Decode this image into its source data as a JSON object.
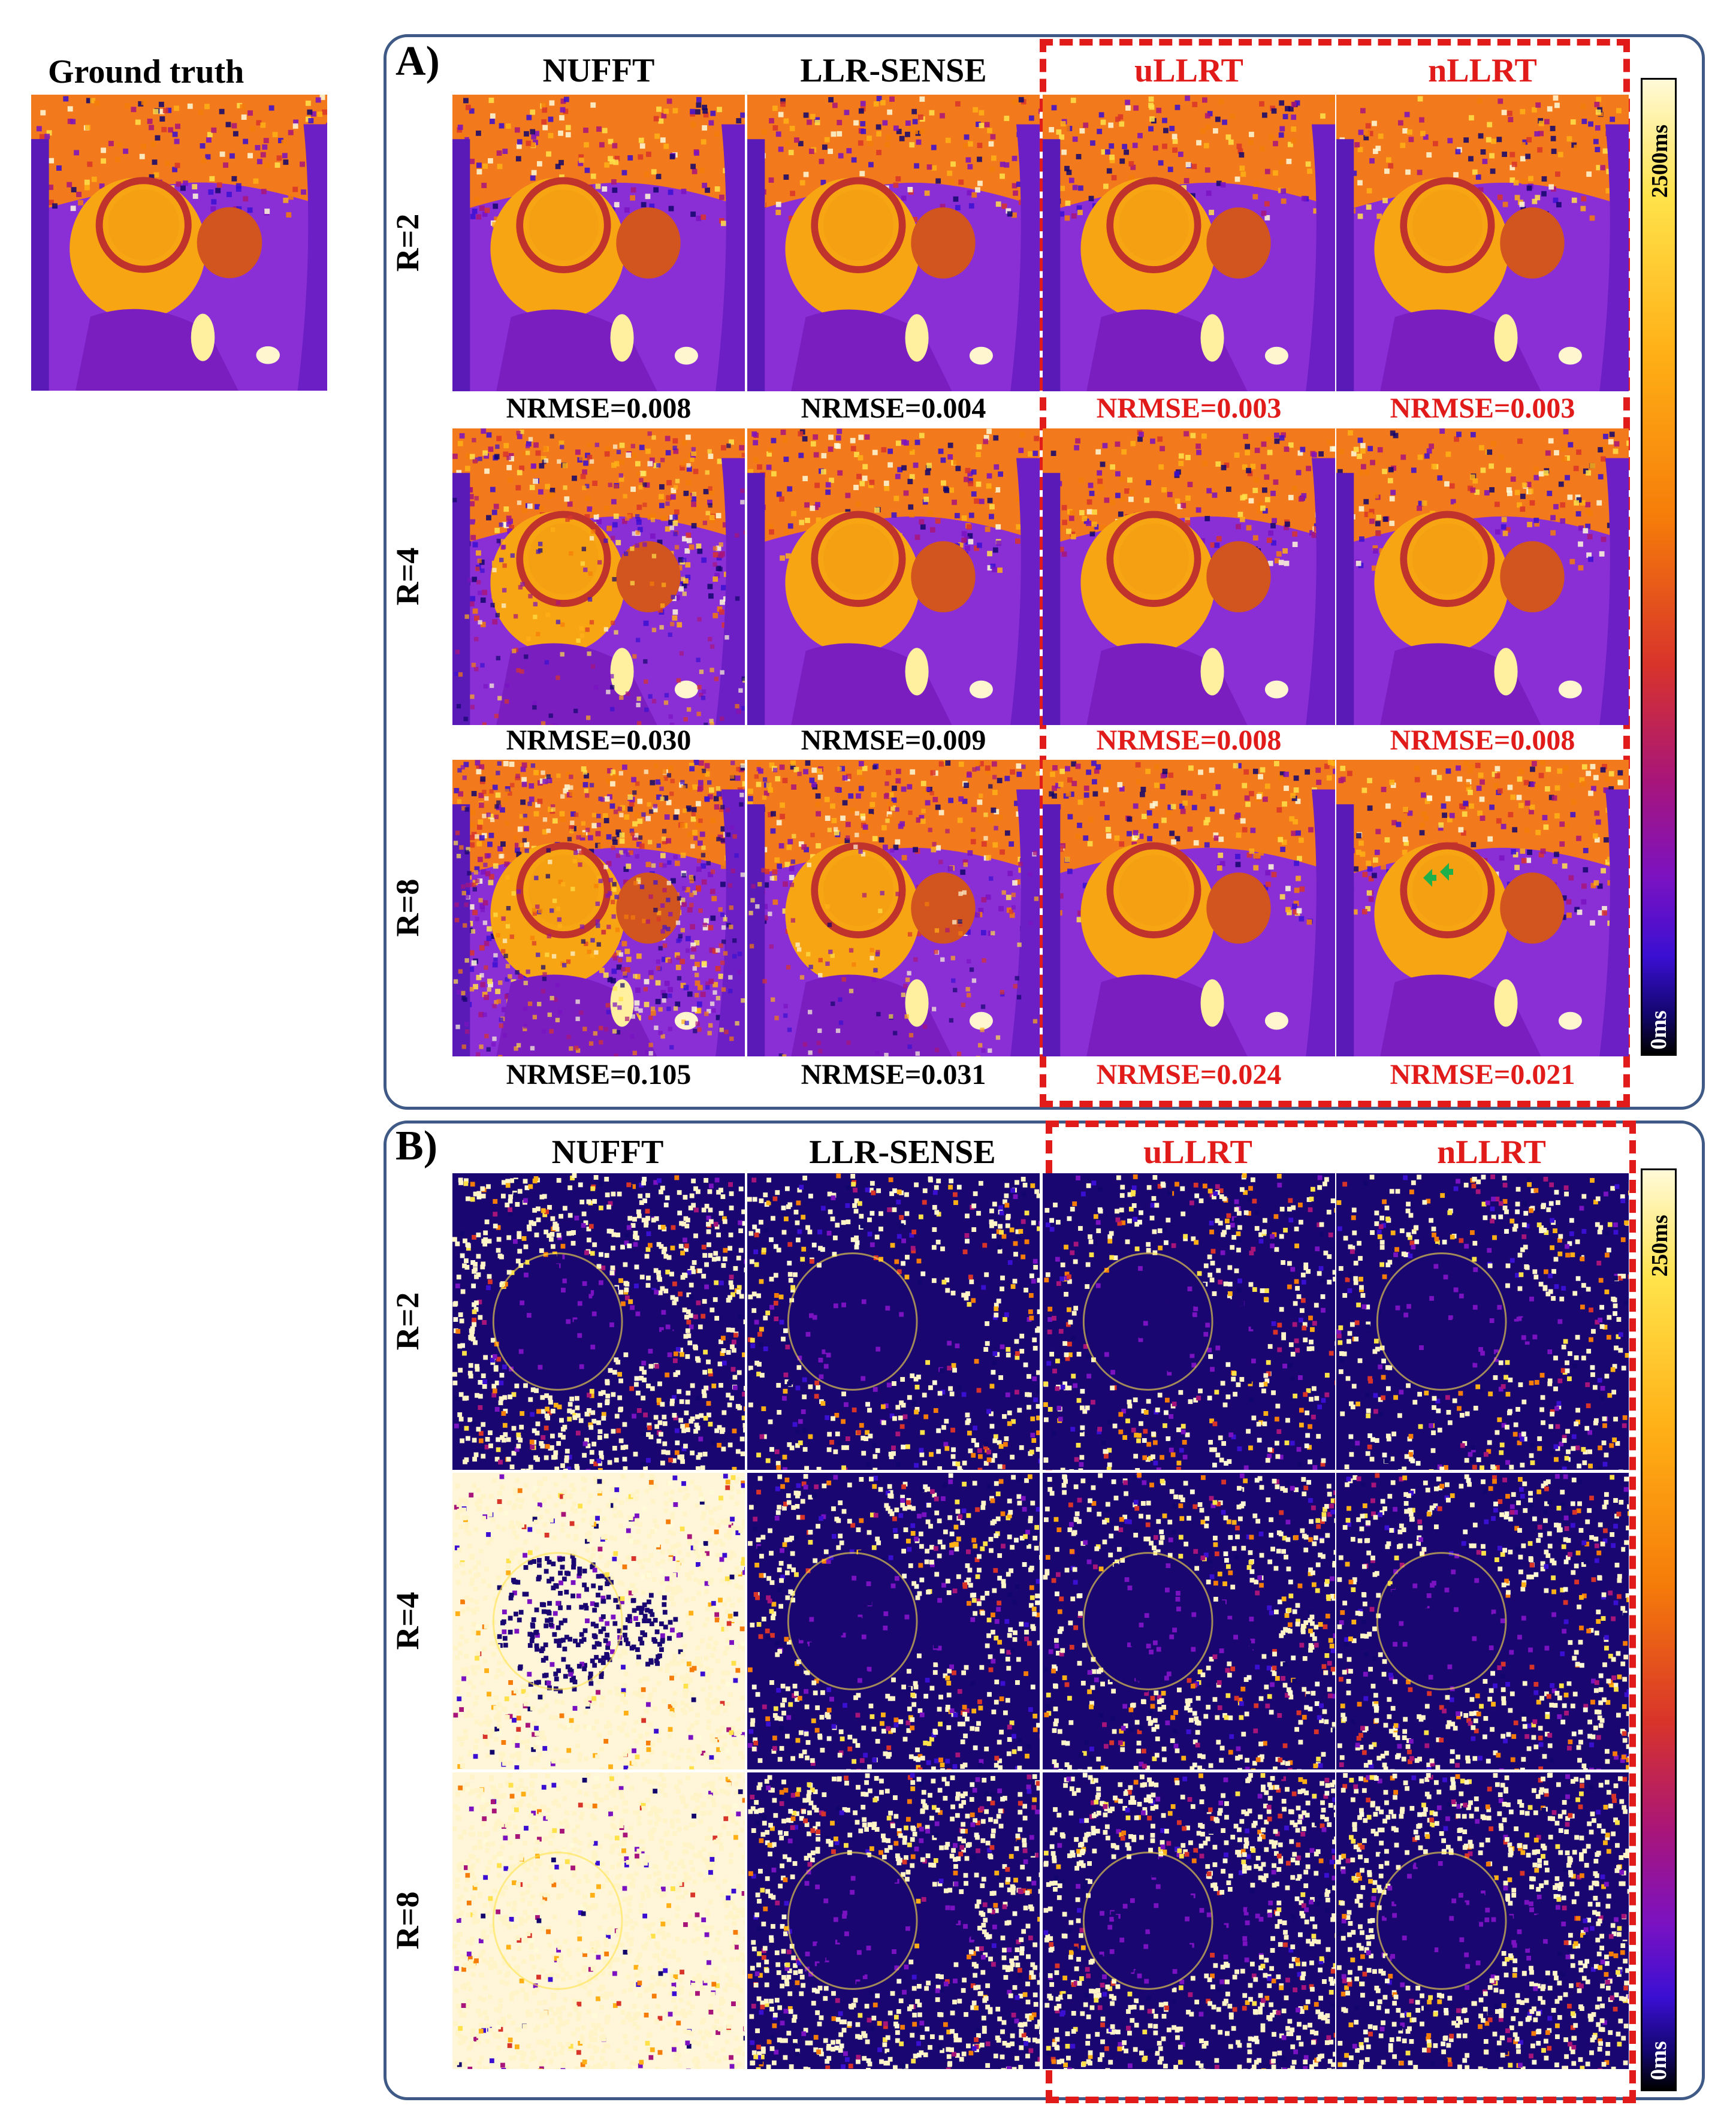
{
  "ground_truth_label": "Ground truth",
  "panel_a": {
    "letter": "A)",
    "columns": [
      "NUFFT",
      "LLR-SENSE",
      "uLLRT",
      "nLLRT"
    ],
    "rows": [
      "R=2",
      "R=4",
      "R=8"
    ],
    "nrmse": [
      [
        "NRMSE=0.008",
        "NRMSE=0.004",
        "NRMSE=0.003",
        "NRMSE=0.003"
      ],
      [
        "NRMSE=0.030",
        "NRMSE=0.009",
        "NRMSE=0.008",
        "NRMSE=0.008"
      ],
      [
        "NRMSE=0.105",
        "NRMSE=0.031",
        "NRMSE=0.024",
        "NRMSE=0.021"
      ]
    ],
    "colorbar_max": "2500ms",
    "colorbar_min": "0ms"
  },
  "panel_b": {
    "letter": "B)",
    "columns": [
      "NUFFT",
      "LLR-SENSE",
      "uLLRT",
      "nLLRT"
    ],
    "rows": [
      "R=2",
      "R=4",
      "R=8"
    ],
    "colorbar_max": "250ms",
    "colorbar_min": "0ms"
  },
  "colors": {
    "highlight": "#e11a1a",
    "panel_border": "#3f5a86",
    "text": "#000000"
  }
}
